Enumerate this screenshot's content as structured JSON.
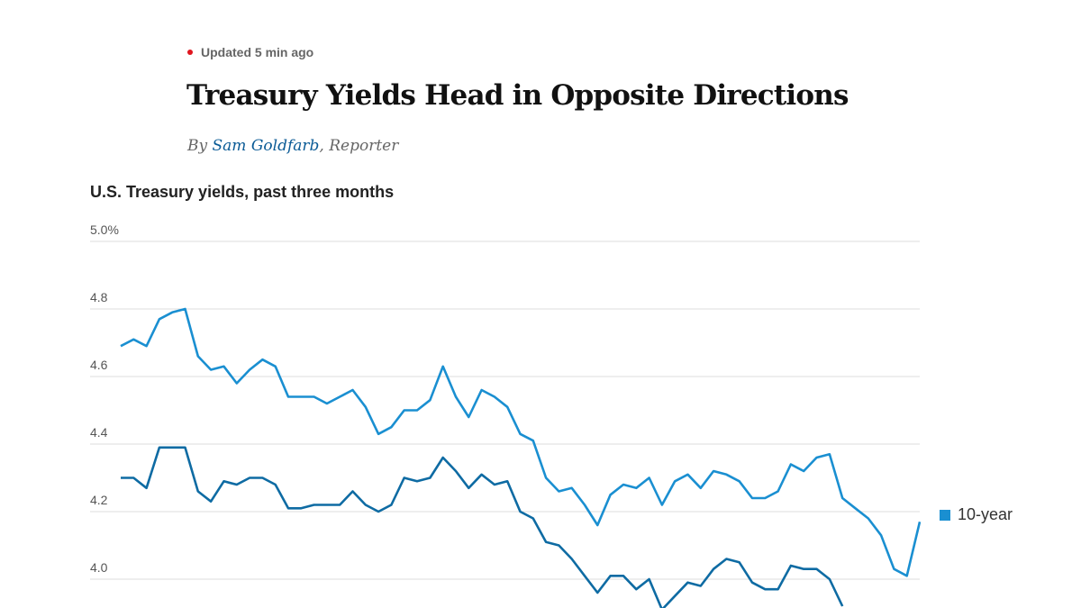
{
  "article": {
    "updated": "Updated 5 min ago",
    "headline": "Treasury Yields Head in Opposite Directions",
    "byline_prefix": "By ",
    "author": "Sam Goldfarb",
    "byline_suffix": ", Reporter"
  },
  "colors": {
    "live_dot": "#e0161f",
    "ten_year": "#1a8fd1",
    "other_series": "#0e6ba3",
    "grid": "#dddddd"
  },
  "chart_data": {
    "type": "line",
    "title": "U.S. Treasury yields, past three months",
    "ylim": [
      3.9,
      5.0
    ],
    "yticks": [
      {
        "value": 5.0,
        "label": "5.0%"
      },
      {
        "value": 4.8,
        "label": "4.8"
      },
      {
        "value": 4.6,
        "label": "4.6"
      },
      {
        "value": 4.4,
        "label": "4.4"
      },
      {
        "value": 4.2,
        "label": "4.2"
      },
      {
        "value": 4.0,
        "label": "4.0"
      }
    ],
    "grid": true,
    "legend": "right",
    "series": [
      {
        "name": "10-year",
        "color": "#1a8fd1",
        "values": [
          4.69,
          4.71,
          4.69,
          4.77,
          4.79,
          4.8,
          4.66,
          4.62,
          4.63,
          4.58,
          4.62,
          4.65,
          4.63,
          4.54,
          4.54,
          4.54,
          4.52,
          4.54,
          4.56,
          4.51,
          4.43,
          4.45,
          4.5,
          4.5,
          4.53,
          4.63,
          4.54,
          4.48,
          4.56,
          4.54,
          4.51,
          4.43,
          4.41,
          4.3,
          4.26,
          4.27,
          4.22,
          4.16,
          4.25,
          4.28,
          4.27,
          4.3,
          4.22,
          4.29,
          4.31,
          4.27,
          4.32,
          4.31,
          4.29,
          4.24,
          4.24,
          4.26,
          4.34,
          4.32,
          4.36,
          4.37,
          4.24,
          4.21,
          4.18,
          4.13,
          4.03,
          4.01,
          4.17
        ]
      },
      {
        "color": "#0e6ba3",
        "values": [
          4.3,
          4.3,
          4.27,
          4.39,
          4.39,
          4.39,
          4.26,
          4.23,
          4.29,
          4.28,
          4.3,
          4.3,
          4.28,
          4.21,
          4.21,
          4.22,
          4.22,
          4.22,
          4.26,
          4.22,
          4.2,
          4.22,
          4.3,
          4.29,
          4.3,
          4.36,
          4.32,
          4.27,
          4.31,
          4.28,
          4.29,
          4.2,
          4.18,
          4.11,
          4.1,
          4.06,
          4.01,
          3.96,
          4.01,
          4.01,
          3.97,
          4.0,
          3.91,
          3.95,
          3.99,
          3.98,
          4.03,
          4.06,
          4.05,
          3.99,
          3.97,
          3.97,
          4.04,
          4.03,
          4.03,
          4.0,
          3.92
        ]
      }
    ]
  }
}
